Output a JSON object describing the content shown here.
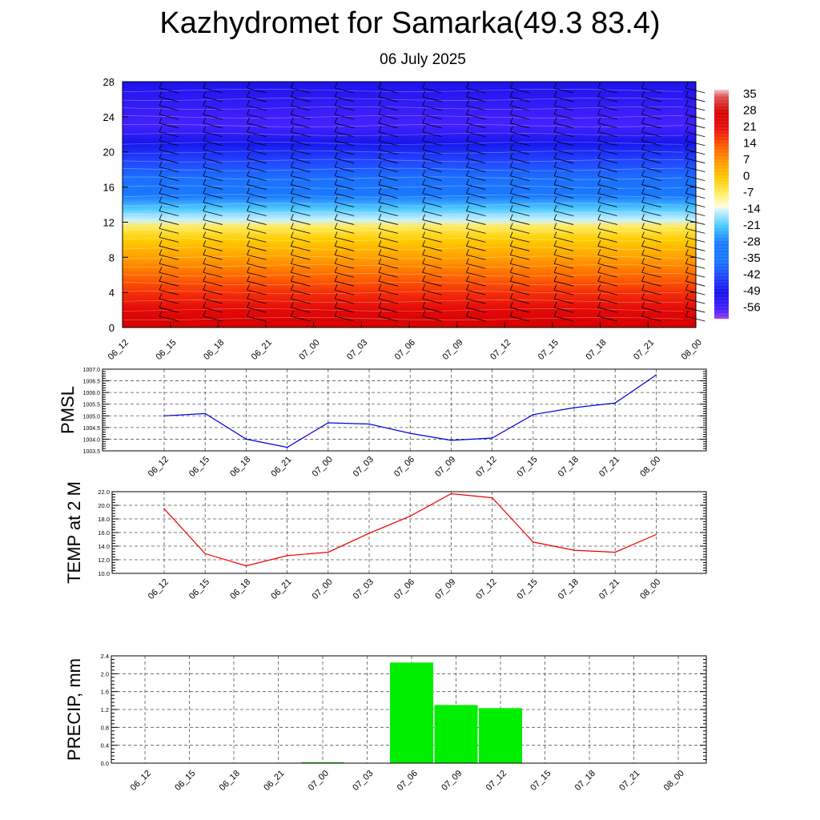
{
  "header": {
    "title": "Kazhydromet for Samarka(49.3 83.4)",
    "subtitle": "06 July 2025"
  },
  "time_labels": [
    "06_12",
    "06_15",
    "06_18",
    "06_21",
    "07_00",
    "07_03",
    "07_06",
    "07_09",
    "07_12",
    "07_15",
    "07_18",
    "07_21",
    "08_00"
  ],
  "chart_data": [
    {
      "id": "cross-section",
      "type": "heatmap",
      "x": [
        "06_12",
        "06_15",
        "06_18",
        "06_21",
        "07_00",
        "07_03",
        "07_06",
        "07_09",
        "07_12",
        "07_15",
        "07_18",
        "07_21",
        "08_00"
      ],
      "ylim": [
        0,
        28
      ],
      "yticks": [
        0,
        4,
        8,
        12,
        16,
        20,
        24,
        28
      ],
      "temperature_profile": [
        {
          "level": 0,
          "value": 28
        },
        {
          "level": 2,
          "value": 24
        },
        {
          "level": 4,
          "value": 18
        },
        {
          "level": 6,
          "value": 12
        },
        {
          "level": 8,
          "value": 6
        },
        {
          "level": 10,
          "value": 0
        },
        {
          "level": 11.5,
          "value": -6
        },
        {
          "level": 12.3,
          "value": -14
        },
        {
          "level": 13.5,
          "value": -20
        },
        {
          "level": 15,
          "value": -28
        },
        {
          "level": 17,
          "value": -36
        },
        {
          "level": 19,
          "value": -42
        },
        {
          "level": 21,
          "value": -48
        },
        {
          "level": 23,
          "value": -56
        },
        {
          "level": 25,
          "value": -54
        },
        {
          "level": 28,
          "value": -50
        }
      ],
      "colorbar": {
        "labels": [
          "35",
          "28",
          "21",
          "14",
          "7",
          "0",
          "-7",
          "-14",
          "-21",
          "-28",
          "-35",
          "-42",
          "-49",
          "-56"
        ],
        "stops": [
          {
            "value": 38,
            "color": "#f4c8c8"
          },
          {
            "value": 35,
            "color": "#e05050"
          },
          {
            "value": 28,
            "color": "#d40000"
          },
          {
            "value": 21,
            "color": "#ee1010"
          },
          {
            "value": 14,
            "color": "#ff5a00"
          },
          {
            "value": 7,
            "color": "#ff9a00"
          },
          {
            "value": 0,
            "color": "#ffcc00"
          },
          {
            "value": -7,
            "color": "#fff070"
          },
          {
            "value": -12,
            "color": "#fffde0"
          },
          {
            "value": -14,
            "color": "#c8f0ff"
          },
          {
            "value": -21,
            "color": "#3cc4ff"
          },
          {
            "value": -28,
            "color": "#1a78ff"
          },
          {
            "value": -35,
            "color": "#1a78ff"
          },
          {
            "value": -42,
            "color": "#2244ff"
          },
          {
            "value": -49,
            "color": "#1410e8"
          },
          {
            "value": -56,
            "color": "#4422ff"
          },
          {
            "value": -60,
            "color": "#9a3cf0"
          }
        ]
      }
    },
    {
      "id": "pmsl",
      "type": "line",
      "ylabel": "PMSL",
      "x": [
        "06_12",
        "06_15",
        "06_18",
        "06_21",
        "07_00",
        "07_03",
        "07_06",
        "07_09",
        "07_12",
        "07_15",
        "07_18",
        "07_21",
        "08_00"
      ],
      "values": [
        1005.0,
        1005.1,
        1004.0,
        1003.65,
        1004.7,
        1004.65,
        1004.25,
        1003.95,
        1004.05,
        1005.05,
        1005.35,
        1005.55,
        1006.75
      ],
      "ylim": [
        1003.5,
        1007.0
      ],
      "yticks": [
        "1003.5",
        "1004.0",
        "1004.5",
        "1005.0",
        "1005.5",
        "1006.0",
        "1006.5",
        "1007.0"
      ],
      "color": "#0000dd"
    },
    {
      "id": "temp2m",
      "type": "line",
      "ylabel": "TEMP at 2 M",
      "x": [
        "06_12",
        "06_15",
        "06_18",
        "06_21",
        "07_00",
        "07_03",
        "07_06",
        "07_09",
        "07_12",
        "07_15",
        "07_18",
        "07_21",
        "08_00"
      ],
      "values": [
        19.5,
        12.9,
        11.1,
        12.6,
        13.1,
        15.9,
        18.4,
        21.7,
        21.1,
        14.6,
        13.4,
        13.1,
        15.7
      ],
      "ylim": [
        10.0,
        22.0
      ],
      "yticks": [
        "10.0",
        "12.0",
        "14.0",
        "16.0",
        "18.0",
        "20.0",
        "22.0"
      ],
      "color": "#ee0000"
    },
    {
      "id": "precip",
      "type": "bar",
      "ylabel": "PRECIP, mm",
      "x": [
        "06_12",
        "06_15",
        "06_18",
        "06_21",
        "07_00",
        "07_03",
        "07_06",
        "07_09",
        "07_12",
        "07_15",
        "07_18",
        "07_21",
        "08_00"
      ],
      "values": [
        0,
        0,
        0,
        0,
        0.02,
        0,
        2.25,
        1.3,
        1.23,
        0,
        0,
        0,
        0
      ],
      "ylim": [
        0,
        2.4
      ],
      "yticks": [
        "0.0",
        "0.4",
        "0.8",
        "1.2",
        "1.6",
        "2.0",
        "2.4"
      ],
      "color": "#00ee00"
    }
  ]
}
